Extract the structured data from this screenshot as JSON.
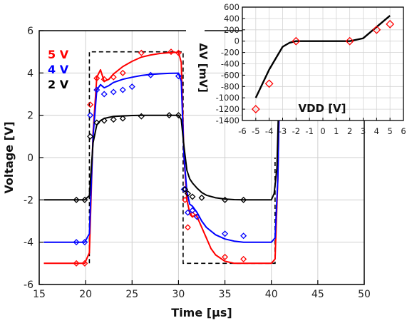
{
  "chart_data": [
    {
      "type": "line",
      "xlabel": "Time [μs]",
      "ylabel": "Voltage [V]",
      "xlim": [
        15,
        50
      ],
      "ylim": [
        -6,
        6
      ],
      "xticks": [
        "15",
        "20",
        "25",
        "30",
        "35",
        "40",
        "45",
        "50"
      ],
      "yticks": [
        "-6",
        "-4",
        "-2",
        "0",
        "2",
        "4",
        "6"
      ],
      "legend_position": "top-left",
      "input_pulse": {
        "style": "dashed",
        "color": "#000000",
        "x": [
          20.4,
          20.4,
          30.5,
          30.5,
          40.4,
          40.4
        ],
        "y": [
          -5,
          5,
          5,
          -5,
          -5,
          0
        ]
      },
      "series": [
        {
          "name": "5 V",
          "color": "#ff0000",
          "line": {
            "x": [
              15.5,
              19.9,
              20.4,
              20.8,
              21.2,
              21.6,
              22.0,
              22.5,
              23.0,
              24.0,
              25.0,
              26.0,
              27.0,
              28.0,
              29.0,
              30.0,
              30.3,
              30.6,
              30.9,
              31.2,
              31.5,
              31.9,
              32.4,
              33.0,
              33.5,
              34.0,
              35.0,
              36.0,
              37.0,
              38.0,
              39.0,
              40.0,
              40.4,
              40.7,
              41.0
            ],
            "y": [
              -5.0,
              -5.0,
              -4.5,
              1.2,
              3.8,
              4.15,
              3.6,
              3.7,
              3.95,
              4.3,
              4.55,
              4.75,
              4.85,
              4.92,
              4.96,
              4.98,
              4.5,
              0.0,
              -2.0,
              -2.6,
              -2.8,
              -2.7,
              -3.2,
              -3.8,
              -4.3,
              -4.6,
              -4.9,
              -5.0,
              -5.0,
              -5.0,
              -5.0,
              -5.0,
              -4.8,
              -1.0,
              6.0
            ]
          },
          "points": {
            "x": [
              19.0,
              19.9,
              20.5,
              21.2,
              22.0,
              23.0,
              24.0,
              26.0,
              29.2,
              30.0,
              30.7,
              31.0,
              31.5,
              35.0,
              37.0
            ],
            "y": [
              -5.0,
              -5.0,
              2.5,
              3.75,
              3.7,
              3.8,
              4.0,
              4.95,
              5.0,
              4.95,
              -2.0,
              -3.3,
              -2.7,
              -4.7,
              -4.8
            ]
          }
        },
        {
          "name": "4 V",
          "color": "#0000ff",
          "line": {
            "x": [
              15.5,
              19.9,
              20.4,
              20.8,
              21.2,
              21.6,
              22.0,
              22.5,
              23.0,
              24.0,
              25.0,
              26.0,
              27.0,
              28.0,
              29.0,
              30.0,
              30.3,
              30.6,
              30.9,
              31.2,
              31.5,
              32.0,
              32.5,
              33.0,
              34.0,
              35.0,
              36.0,
              37.0,
              38.0,
              39.0,
              40.0,
              40.4,
              40.7,
              41.0
            ],
            "y": [
              -4.0,
              -4.0,
              -3.6,
              1.0,
              3.2,
              3.45,
              3.3,
              3.4,
              3.55,
              3.7,
              3.8,
              3.88,
              3.93,
              3.96,
              3.98,
              3.99,
              3.6,
              0.0,
              -1.6,
              -2.2,
              -2.3,
              -2.6,
              -3.0,
              -3.3,
              -3.65,
              -3.85,
              -3.95,
              -4.0,
              -4.0,
              -4.0,
              -4.0,
              -3.8,
              -1.0,
              6.0
            ]
          },
          "points": {
            "x": [
              19.0,
              19.9,
              20.5,
              21.2,
              22.0,
              23.0,
              24.0,
              25.0,
              27.0,
              30.0,
              30.6,
              31.0,
              31.5,
              32.0,
              35.0,
              37.0
            ],
            "y": [
              -4.0,
              -4.0,
              2.0,
              3.2,
              3.0,
              3.1,
              3.2,
              3.35,
              3.9,
              3.85,
              -1.5,
              -2.6,
              -2.5,
              -2.8,
              -3.6,
              -3.7
            ]
          }
        },
        {
          "name": "2 V",
          "color": "#000000",
          "line": {
            "x": [
              15.5,
              19.9,
              20.4,
              20.8,
              21.2,
              21.6,
              22.0,
              22.5,
              23.0,
              24.0,
              25.0,
              26.0,
              27.0,
              28.0,
              29.0,
              30.0,
              30.3,
              30.6,
              30.9,
              31.2,
              31.5,
              32.0,
              32.5,
              33.0,
              34.0,
              35.0,
              36.0,
              37.0,
              38.0,
              39.0,
              40.0,
              40.3,
              40.6,
              41.0
            ],
            "y": [
              -2.0,
              -2.0,
              -1.8,
              0.7,
              1.55,
              1.75,
              1.85,
              1.9,
              1.94,
              1.97,
              1.99,
              2.0,
              2.0,
              2.0,
              2.0,
              2.0,
              1.8,
              0.5,
              -0.6,
              -1.0,
              -1.2,
              -1.45,
              -1.65,
              -1.78,
              -1.9,
              -1.96,
              -1.99,
              -2.0,
              -2.0,
              -2.0,
              -2.0,
              -1.7,
              -0.5,
              6.0
            ]
          },
          "points": {
            "x": [
              19.0,
              19.9,
              20.5,
              21.2,
              22.0,
              23.0,
              24.0,
              26.0,
              29.0,
              30.0,
              30.7,
              31.0,
              31.5,
              32.5,
              35.0,
              37.0
            ],
            "y": [
              -2.0,
              -2.0,
              1.0,
              1.65,
              1.75,
              1.8,
              1.85,
              1.95,
              2.0,
              2.0,
              -1.5,
              -1.7,
              -1.85,
              -1.9,
              -2.0,
              -2.0
            ]
          }
        }
      ]
    },
    {
      "type": "line",
      "xlabel": "VDD [V]",
      "ylabel": "ΔV [mV]",
      "xlim": [
        -6,
        6
      ],
      "ylim": [
        -1400,
        600
      ],
      "xticks": [
        "-6",
        "-5",
        "-4",
        "-3",
        "-2",
        "-1",
        "0",
        "1",
        "2",
        "3",
        "4",
        "5",
        "6"
      ],
      "yticks": [
        "600",
        "400",
        "200",
        "0",
        "-200",
        "-400",
        "-600",
        "-800",
        "-1000",
        "-1200",
        "-1400"
      ],
      "series": [
        {
          "color": "#000000",
          "line": {
            "x": [
              -5,
              -4,
              -3,
              -2.5,
              -2,
              0,
              2,
              3,
              4,
              5
            ],
            "y": [
              -1000,
              -500,
              -100,
              -30,
              0,
              0,
              0,
              50,
              250,
              450
            ]
          }
        },
        {
          "color": "#ff0000",
          "points": {
            "x": [
              -5,
              -4,
              -2,
              2,
              4,
              5
            ],
            "y": [
              -1200,
              -750,
              0,
              0,
              200,
              300
            ]
          }
        }
      ]
    }
  ]
}
